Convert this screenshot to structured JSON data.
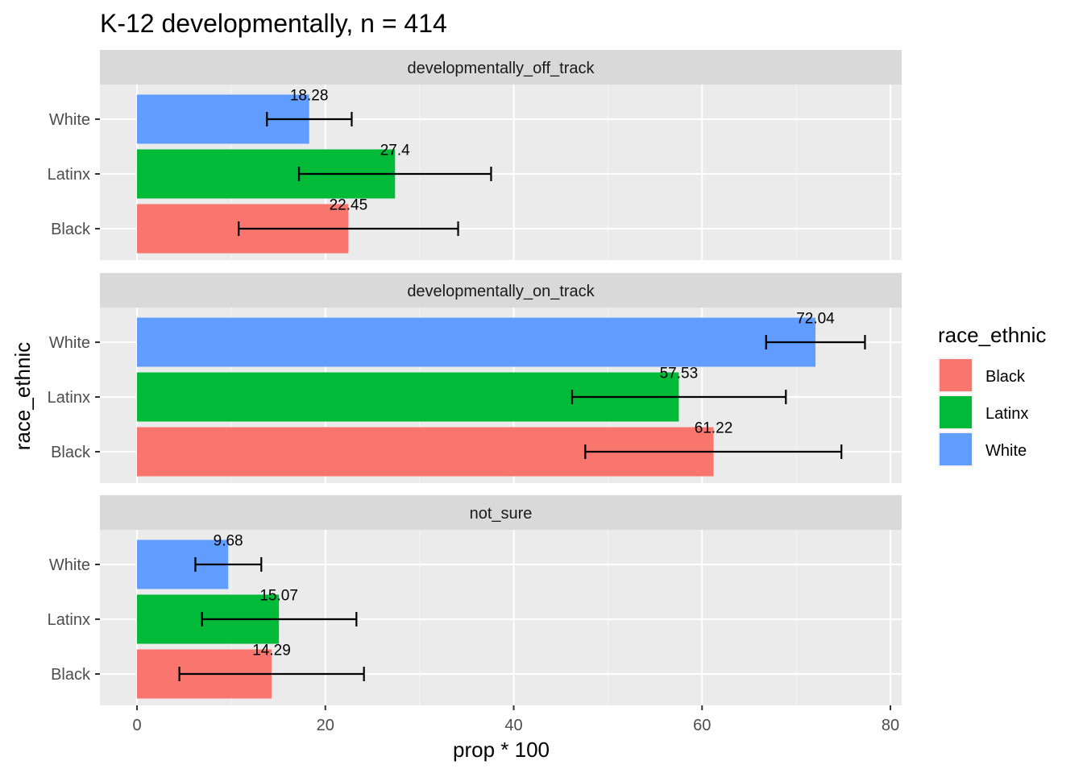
{
  "chart_data": {
    "type": "bar",
    "orientation": "horizontal",
    "title": "K-12 developmentally, n = 414",
    "xlabel": "prop * 100",
    "ylabel": "race_ethnic",
    "xlim": [
      0,
      80
    ],
    "x_ticks": [
      "0",
      "20",
      "40",
      "60",
      "80"
    ],
    "categories": [
      "Black",
      "Latinx",
      "White"
    ],
    "grid": true,
    "legend": {
      "title": "race_ethnic",
      "placement": "right",
      "entries": [
        {
          "label": "Black",
          "color": "#F8766D"
        },
        {
          "label": "Latinx",
          "color": "#00BA38"
        },
        {
          "label": "White",
          "color": "#619CFF"
        }
      ]
    },
    "facets": [
      {
        "name": "developmentally_off_track",
        "bars": [
          {
            "category": "White",
            "value": 18.28,
            "label": "18.28",
            "err_low": 13.8,
            "err_high": 22.8
          },
          {
            "category": "Latinx",
            "value": 27.4,
            "label": "27.4",
            "err_low": 17.2,
            "err_high": 37.6
          },
          {
            "category": "Black",
            "value": 22.45,
            "label": "22.45",
            "err_low": 10.8,
            "err_high": 34.1
          }
        ]
      },
      {
        "name": "developmentally_on_track",
        "bars": [
          {
            "category": "White",
            "value": 72.04,
            "label": "72.04",
            "err_low": 66.8,
            "err_high": 77.3
          },
          {
            "category": "Latinx",
            "value": 57.53,
            "label": "57.53",
            "err_low": 46.2,
            "err_high": 68.9
          },
          {
            "category": "Black",
            "value": 61.22,
            "label": "61.22",
            "err_low": 47.6,
            "err_high": 74.8
          }
        ]
      },
      {
        "name": "not_sure",
        "bars": [
          {
            "category": "White",
            "value": 9.68,
            "label": "9.68",
            "err_low": 6.2,
            "err_high": 13.2
          },
          {
            "category": "Latinx",
            "value": 15.07,
            "label": "15.07",
            "err_low": 6.9,
            "err_high": 23.3
          },
          {
            "category": "Black",
            "value": 14.29,
            "label": "14.29",
            "err_low": 4.5,
            "err_high": 24.1
          }
        ]
      }
    ]
  }
}
